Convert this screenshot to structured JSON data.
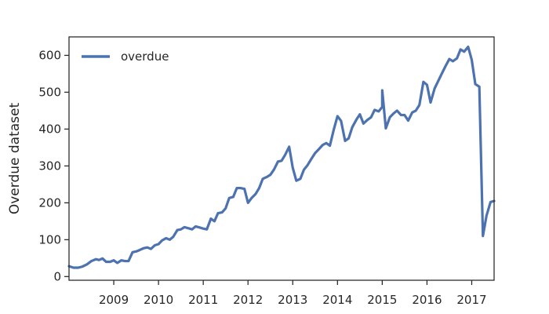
{
  "chart_data": {
    "type": "line",
    "title": "",
    "xlabel": "",
    "ylabel": "Overdue dataset",
    "xlim": [
      2008.0,
      2017.5
    ],
    "ylim": [
      -10,
      650
    ],
    "grid": false,
    "legend_position": "top-left",
    "xticks": [
      {
        "value": 2009,
        "label": "2009"
      },
      {
        "value": 2010,
        "label": "2010"
      },
      {
        "value": 2011,
        "label": "2011"
      },
      {
        "value": 2012,
        "label": "2012"
      },
      {
        "value": 2013,
        "label": "2013"
      },
      {
        "value": 2014,
        "label": "2014"
      },
      {
        "value": 2015,
        "label": "2015"
      },
      {
        "value": 2016,
        "label": "2016"
      },
      {
        "value": 2017,
        "label": "2017"
      }
    ],
    "yticks": [
      {
        "value": 0,
        "label": "0"
      },
      {
        "value": 100,
        "label": "100"
      },
      {
        "value": 200,
        "label": "200"
      },
      {
        "value": 300,
        "label": "300"
      },
      {
        "value": 400,
        "label": "400"
      },
      {
        "value": 500,
        "label": "500"
      },
      {
        "value": 600,
        "label": "600"
      }
    ],
    "series": [
      {
        "name": "overdue",
        "color": "#4c72b0",
        "points": [
          [
            2008.0,
            28
          ],
          [
            2008.1,
            24
          ],
          [
            2008.2,
            24
          ],
          [
            2008.3,
            27
          ],
          [
            2008.4,
            33
          ],
          [
            2008.5,
            42
          ],
          [
            2008.6,
            47
          ],
          [
            2008.67,
            45
          ],
          [
            2008.75,
            49
          ],
          [
            2008.83,
            40
          ],
          [
            2008.92,
            40
          ],
          [
            2009.0,
            44
          ],
          [
            2009.08,
            37
          ],
          [
            2009.17,
            44
          ],
          [
            2009.25,
            42
          ],
          [
            2009.33,
            42
          ],
          [
            2009.42,
            66
          ],
          [
            2009.5,
            68
          ],
          [
            2009.58,
            72
          ],
          [
            2009.67,
            77
          ],
          [
            2009.75,
            79
          ],
          [
            2009.83,
            75
          ],
          [
            2009.92,
            85
          ],
          [
            2010.0,
            88
          ],
          [
            2010.08,
            98
          ],
          [
            2010.17,
            104
          ],
          [
            2010.25,
            100
          ],
          [
            2010.33,
            108
          ],
          [
            2010.42,
            126
          ],
          [
            2010.5,
            128
          ],
          [
            2010.58,
            134
          ],
          [
            2010.67,
            131
          ],
          [
            2010.75,
            128
          ],
          [
            2010.83,
            136
          ],
          [
            2010.92,
            133
          ],
          [
            2011.0,
            130
          ],
          [
            2011.08,
            128
          ],
          [
            2011.17,
            157
          ],
          [
            2011.25,
            150
          ],
          [
            2011.33,
            172
          ],
          [
            2011.42,
            174
          ],
          [
            2011.5,
            185
          ],
          [
            2011.58,
            213
          ],
          [
            2011.67,
            216
          ],
          [
            2011.75,
            240
          ],
          [
            2011.83,
            240
          ],
          [
            2011.92,
            238
          ],
          [
            2012.0,
            200
          ],
          [
            2012.08,
            213
          ],
          [
            2012.17,
            224
          ],
          [
            2012.25,
            240
          ],
          [
            2012.33,
            265
          ],
          [
            2012.42,
            270
          ],
          [
            2012.5,
            276
          ],
          [
            2012.58,
            290
          ],
          [
            2012.67,
            312
          ],
          [
            2012.75,
            314
          ],
          [
            2012.83,
            330
          ],
          [
            2012.92,
            352
          ],
          [
            2013.0,
            295
          ],
          [
            2013.08,
            260
          ],
          [
            2013.17,
            265
          ],
          [
            2013.25,
            290
          ],
          [
            2013.33,
            302
          ],
          [
            2013.42,
            320
          ],
          [
            2013.5,
            335
          ],
          [
            2013.58,
            345
          ],
          [
            2013.67,
            357
          ],
          [
            2013.75,
            362
          ],
          [
            2013.83,
            355
          ],
          [
            2013.92,
            400
          ],
          [
            2014.0,
            435
          ],
          [
            2014.08,
            422
          ],
          [
            2014.17,
            368
          ],
          [
            2014.25,
            375
          ],
          [
            2014.33,
            405
          ],
          [
            2014.42,
            425
          ],
          [
            2014.5,
            440
          ],
          [
            2014.58,
            415
          ],
          [
            2014.67,
            425
          ],
          [
            2014.75,
            432
          ],
          [
            2014.83,
            452
          ],
          [
            2014.92,
            448
          ],
          [
            2015.0,
            460
          ],
          [
            2015.0,
            505
          ],
          [
            2015.08,
            402
          ],
          [
            2015.17,
            432
          ],
          [
            2015.25,
            442
          ],
          [
            2015.33,
            450
          ],
          [
            2015.42,
            438
          ],
          [
            2015.5,
            438
          ],
          [
            2015.58,
            423
          ],
          [
            2015.67,
            445
          ],
          [
            2015.75,
            450
          ],
          [
            2015.83,
            465
          ],
          [
            2015.92,
            528
          ],
          [
            2016.0,
            520
          ],
          [
            2016.08,
            472
          ],
          [
            2016.17,
            510
          ],
          [
            2016.25,
            530
          ],
          [
            2016.33,
            550
          ],
          [
            2016.42,
            572
          ],
          [
            2016.5,
            590
          ],
          [
            2016.58,
            584
          ],
          [
            2016.67,
            592
          ],
          [
            2016.75,
            616
          ],
          [
            2016.83,
            610
          ],
          [
            2016.92,
            623
          ],
          [
            2017.0,
            588
          ],
          [
            2017.08,
            522
          ],
          [
            2017.17,
            515
          ],
          [
            2017.25,
            110
          ],
          [
            2017.33,
            165
          ],
          [
            2017.42,
            202
          ],
          [
            2017.5,
            205
          ]
        ]
      }
    ]
  }
}
